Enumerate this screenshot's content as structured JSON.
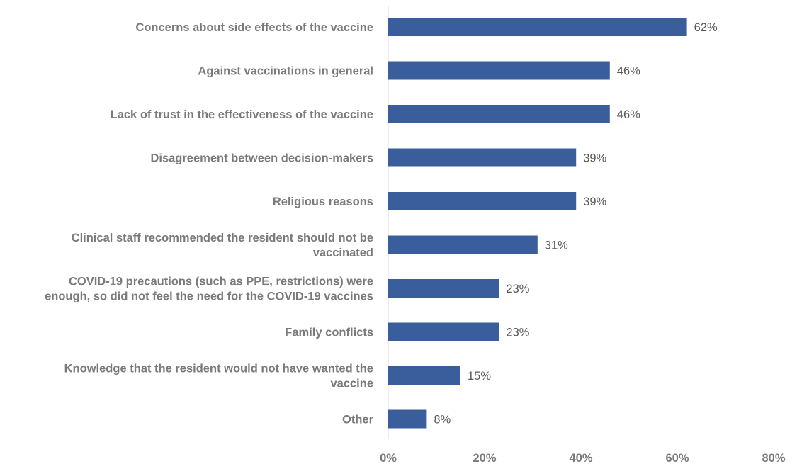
{
  "chart_data": {
    "type": "bar",
    "orientation": "horizontal",
    "categories": [
      "Concerns about side effects of the vaccine",
      "Against vaccinations in general",
      "Lack of trust in the effectiveness of the vaccine",
      "Disagreement between decision-makers",
      "Religious reasons",
      [
        "Clinical staff recommended the resident should not be",
        "vaccinated"
      ],
      [
        "COVID-19 precautions (such as PPE, restrictions) were",
        "enough, so did not feel the need for the COVID-19 vaccines"
      ],
      "Family conflicts",
      [
        "Knowledge that the resident would not have wanted the",
        "vaccine"
      ],
      "Other"
    ],
    "values": [
      62,
      46,
      46,
      39,
      39,
      31,
      23,
      23,
      15,
      8
    ],
    "value_labels": [
      "62%",
      "46%",
      "46%",
      "39%",
      "39%",
      "31%",
      "23%",
      "23%",
      "15%",
      "8%"
    ],
    "xlim": [
      0,
      80
    ],
    "ticks": [
      0,
      20,
      40,
      60,
      80
    ],
    "tick_labels": [
      "0%",
      "20%",
      "40%",
      "60%",
      "80%"
    ],
    "grid": false,
    "legend": "none",
    "colors": {
      "bar": "#3a5e9c",
      "axis": "#d9d9d9",
      "category_text": "#7a7a7a",
      "value_text": "#595959"
    }
  }
}
